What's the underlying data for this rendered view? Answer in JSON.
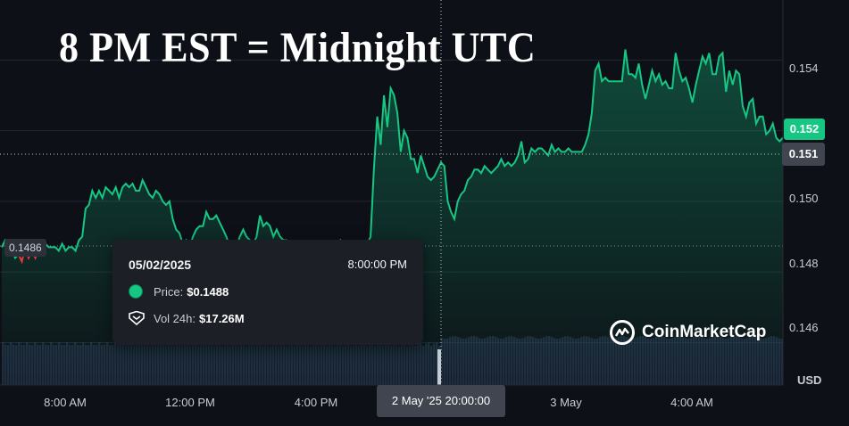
{
  "headline": "8 PM EST = Midnight UTC",
  "chart_data": {
    "type": "line",
    "y_ticks": [
      "0.154",
      "0.152",
      "0.150",
      "0.148",
      "0.146"
    ],
    "y_tick_values": [
      0.154,
      0.152,
      0.15,
      0.148,
      0.146
    ],
    "ylim": [
      0.1448,
      0.1556
    ],
    "x_ticks": [
      "8:00 AM",
      "12:00 PM",
      "4:00 PM",
      "3 May",
      "4:00 AM"
    ],
    "currency_label": "USD",
    "current_price_label": "0.152",
    "crosshair_price_label": "0.151",
    "crosshair_time_label": "2 May '25 20:00:00",
    "start_price_label": "0.1486",
    "colors": {
      "up": "#16c784",
      "down": "#ea3943",
      "volume": "#2f3d5c"
    },
    "series": [
      {
        "name": "Price",
        "values": [
          0.1487,
          0.1489,
          0.1488,
          0.1486,
          0.1484,
          0.1485,
          0.1483,
          0.1487,
          0.1484,
          0.1486,
          0.1484,
          0.1487,
          0.1486,
          0.1488,
          0.1487,
          0.1487,
          0.1487,
          0.1486,
          0.1488,
          0.1486,
          0.1487,
          0.1487,
          0.1486,
          0.1489,
          0.149,
          0.1498,
          0.1499,
          0.1503,
          0.1501,
          0.1503,
          0.1501,
          0.1504,
          0.1503,
          0.1502,
          0.1504,
          0.1501,
          0.1504,
          0.1505,
          0.1504,
          0.1505,
          0.1503,
          0.1503,
          0.1506,
          0.1504,
          0.1502,
          0.1501,
          0.1503,
          0.1502,
          0.15,
          0.1499,
          0.15,
          0.1495,
          0.1492,
          0.1491,
          0.1488,
          0.1489,
          0.1487,
          0.149,
          0.1492,
          0.1493,
          0.1493,
          0.1497,
          0.1495,
          0.1495,
          0.1496,
          0.1494,
          0.1492,
          0.149,
          0.1487,
          0.1486,
          0.1487,
          0.149,
          0.1492,
          0.149,
          0.1489,
          0.1488,
          0.149,
          0.1496,
          0.1493,
          0.1494,
          0.1493,
          0.149,
          0.1492,
          0.149,
          0.1489,
          0.1489,
          0.1488,
          0.1488,
          0.1485,
          0.1486,
          0.1485,
          0.1486,
          0.1488,
          0.1485,
          0.1486,
          0.1485,
          0.1486,
          0.1485,
          0.1485,
          0.1486,
          0.1488,
          0.1489,
          0.1487,
          0.1486,
          0.1488,
          0.1487,
          0.1488,
          0.1487,
          0.1488,
          0.1488,
          0.149,
          0.1509,
          0.1524,
          0.1516,
          0.153,
          0.1521,
          0.1532,
          0.153,
          0.1525,
          0.1514,
          0.152,
          0.1518,
          0.1512,
          0.1512,
          0.1508,
          0.1513,
          0.151,
          0.1507,
          0.1506,
          0.1507,
          0.1509,
          0.1511,
          0.151,
          0.15,
          0.1497,
          0.1495,
          0.15,
          0.1502,
          0.1503,
          0.1506,
          0.1507,
          0.1509,
          0.1509,
          0.1508,
          0.151,
          0.1509,
          0.1508,
          0.1509,
          0.151,
          0.1512,
          0.151,
          0.1511,
          0.151,
          0.1511,
          0.1513,
          0.1517,
          0.1511,
          0.1512,
          0.1515,
          0.1514,
          0.1515,
          0.1515,
          0.1514,
          0.1513,
          0.1516,
          0.1514,
          0.1515,
          0.1514,
          0.1514,
          0.1515,
          0.1514,
          0.1514,
          0.1514,
          0.1514,
          0.1516,
          0.1519,
          0.1525,
          0.1537,
          0.1539,
          0.1534,
          0.1535,
          0.1534,
          0.1534,
          0.1534,
          0.1534,
          0.1534,
          0.1543,
          0.1536,
          0.1536,
          0.1535,
          0.1539,
          0.1533,
          0.1529,
          0.1533,
          0.1537,
          0.1534,
          0.1536,
          0.1533,
          0.1534,
          0.1532,
          0.1532,
          0.1542,
          0.1537,
          0.1534,
          0.1535,
          0.1532,
          0.1528,
          0.1533,
          0.1537,
          0.1541,
          0.1539,
          0.1542,
          0.1536,
          0.1536,
          0.1541,
          0.1542,
          0.1531,
          0.1537,
          0.1533,
          0.1537,
          0.1536,
          0.1527,
          0.1524,
          0.1528,
          0.1529,
          0.1522,
          0.1524,
          0.1524,
          0.1519,
          0.152,
          0.1522,
          0.1518,
          0.1517,
          0.1518
        ]
      }
    ]
  },
  "tooltip": {
    "date": "05/02/2025",
    "time": "8:00:00 PM",
    "price_label": "Price:",
    "price_value": "$0.1488",
    "vol_label": "Vol 24h:",
    "vol_value": "$17.26M"
  },
  "brand": "CoinMarketCap"
}
